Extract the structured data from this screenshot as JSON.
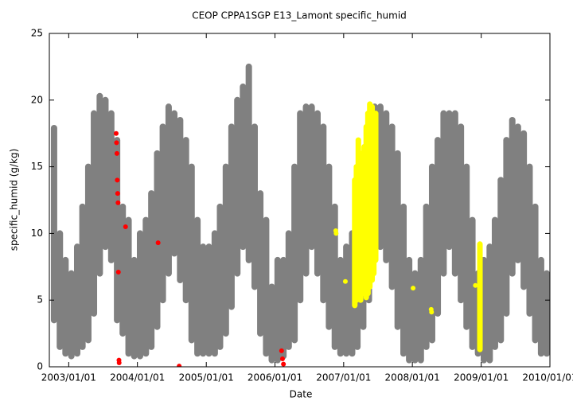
{
  "chart_data": {
    "type": "scatter",
    "title": "CEOP CPPA1SGP E13_Lamont  specific_humid",
    "xlabel": "Date",
    "ylabel": "specific_humid (g/kg)",
    "xlim": [
      "2002/09/20",
      "2010/01/01"
    ],
    "ylim": [
      0,
      25
    ],
    "xticks": [
      "2003/01/01",
      "2004/01/01",
      "2005/01/01",
      "2006/01/01",
      "2007/01/01",
      "2008/01/01",
      "2009/01/01",
      "2010/01/01"
    ],
    "yticks": [
      0,
      5,
      10,
      15,
      20,
      25
    ],
    "series": [
      {
        "color": "#808080",
        "x": [
          "2002/10/15",
          "2002/11/15",
          "2002/12/15",
          "2003/01/15",
          "2003/02/15",
          "2003/03/15",
          "2003/04/15",
          "2003/05/15",
          "2003/06/15",
          "2003/07/15",
          "2003/08/15",
          "2003/09/15",
          "2003/10/15",
          "2003/11/15",
          "2003/12/15",
          "2004/01/15",
          "2004/02/15",
          "2004/03/15",
          "2004/04/15",
          "2004/05/15",
          "2004/06/15",
          "2004/07/15",
          "2004/08/15",
          "2004/09/15",
          "2004/10/15",
          "2004/11/15",
          "2004/12/15",
          "2005/01/15",
          "2005/02/15",
          "2005/03/15",
          "2005/04/15",
          "2005/05/15",
          "2005/06/15",
          "2005/07/15",
          "2005/08/15",
          "2005/09/15",
          "2005/10/15",
          "2005/11/15",
          "2005/12/15",
          "2006/01/15",
          "2006/02/15",
          "2006/03/15",
          "2006/04/15",
          "2006/05/15",
          "2006/06/15",
          "2006/07/15",
          "2006/08/15",
          "2006/09/15",
          "2006/10/15",
          "2006/11/15",
          "2006/12/15",
          "2007/01/15",
          "2007/02/15",
          "2007/03/15",
          "2007/04/15",
          "2007/05/15",
          "2007/06/15",
          "2007/07/15",
          "2007/08/15",
          "2007/09/15",
          "2007/10/15",
          "2007/11/15",
          "2007/12/15",
          "2008/01/15",
          "2008/02/15",
          "2008/03/15",
          "2008/04/15",
          "2008/05/15",
          "2008/06/15",
          "2008/07/15",
          "2008/08/15",
          "2008/09/15",
          "2008/10/15",
          "2008/11/15",
          "2008/12/15",
          "2009/01/15",
          "2009/02/15",
          "2009/03/15",
          "2009/04/15",
          "2009/05/15",
          "2009/06/15",
          "2009/07/15",
          "2009/08/15",
          "2009/09/15",
          "2009/10/15",
          "2009/11/15",
          "2009/12/15"
        ],
        "high": [
          17.9,
          10,
          8,
          7,
          9,
          12,
          15,
          19,
          20.3,
          20,
          19,
          17,
          12,
          11,
          8,
          10,
          11,
          13,
          16,
          18,
          19.5,
          19,
          18.5,
          17,
          15,
          11,
          9,
          9,
          10,
          12,
          15,
          18,
          20,
          21,
          22.5,
          18,
          13,
          11,
          6,
          8,
          8,
          10,
          15,
          19,
          19.5,
          19.5,
          19,
          18,
          15,
          12,
          8,
          9,
          10,
          12,
          14,
          17,
          19.5,
          19.5,
          19,
          18,
          16,
          12,
          8,
          7,
          8,
          12,
          15,
          17,
          19,
          19,
          19,
          18,
          15,
          11,
          7,
          8,
          9,
          11,
          14,
          17,
          18.5,
          18,
          17.5,
          15,
          12,
          8,
          7
        ],
        "low": [
          3.5,
          1.5,
          1,
          0.8,
          1,
          1.5,
          2,
          4,
          7,
          9,
          8,
          3.5,
          2.5,
          1,
          0.8,
          0.8,
          1,
          1.5,
          3,
          5,
          7,
          8.5,
          6.5,
          5,
          2,
          1,
          1,
          1,
          1,
          1.5,
          2.5,
          4.5,
          7,
          9,
          8,
          6,
          2.5,
          1,
          0.5,
          0.5,
          0.8,
          1.5,
          2,
          5,
          7,
          9,
          7,
          5,
          3,
          1.5,
          1,
          1,
          1,
          1.5,
          3,
          5,
          8,
          9,
          8,
          6,
          3,
          1,
          0.5,
          0.5,
          0.5,
          1.5,
          2,
          4,
          7,
          9,
          7,
          5,
          3,
          1.5,
          1,
          0.5,
          0.5,
          1.5,
          2,
          4,
          7,
          8,
          6,
          4,
          2,
          1,
          1
        ]
      },
      {
        "color": "#ffff00",
        "x": [
          "2007/03/01",
          "2007/03/10",
          "2007/03/20",
          "2007/04/01",
          "2007/04/10",
          "2007/04/20",
          "2007/05/01",
          "2007/05/10",
          "2007/05/20",
          "2007/06/01",
          "2007/06/10",
          "2007/06/20",
          "2008/12/25"
        ],
        "high": [
          14,
          15,
          17,
          16,
          15,
          16.5,
          18,
          19,
          19.7,
          19.5,
          18.5,
          19,
          9.2
        ],
        "low": [
          4.6,
          5,
          5.5,
          5,
          6,
          5.5,
          5.2,
          5.5,
          6,
          6.5,
          7,
          8,
          1.3
        ]
      },
      {
        "color": "#ffff00",
        "x": [
          "2006/11/20",
          "2006/11/22",
          "2007/01/10",
          "2008/01/05",
          "2008/04/10",
          "2008/04/12",
          "2008/12/01"
        ],
        "values": [
          10.2,
          10,
          6.4,
          5.9,
          4.3,
          4.1,
          6.1
        ]
      },
      {
        "color": "#ff0000",
        "x": [
          "2003/09/10",
          "2003/09/12",
          "2003/09/14",
          "2003/09/16",
          "2003/09/18",
          "2003/09/20",
          "2003/09/22",
          "2003/09/25",
          "2003/09/26",
          "2003/10/30",
          "2004/04/20",
          "2004/08/10",
          "2006/02/05",
          "2006/02/10",
          "2006/02/15"
        ],
        "values": [
          17.5,
          16.8,
          16,
          14,
          13,
          12.3,
          7.1,
          0.5,
          0.3,
          10.5,
          9.3,
          0.05,
          1.2,
          0.6,
          0.2
        ]
      }
    ]
  }
}
